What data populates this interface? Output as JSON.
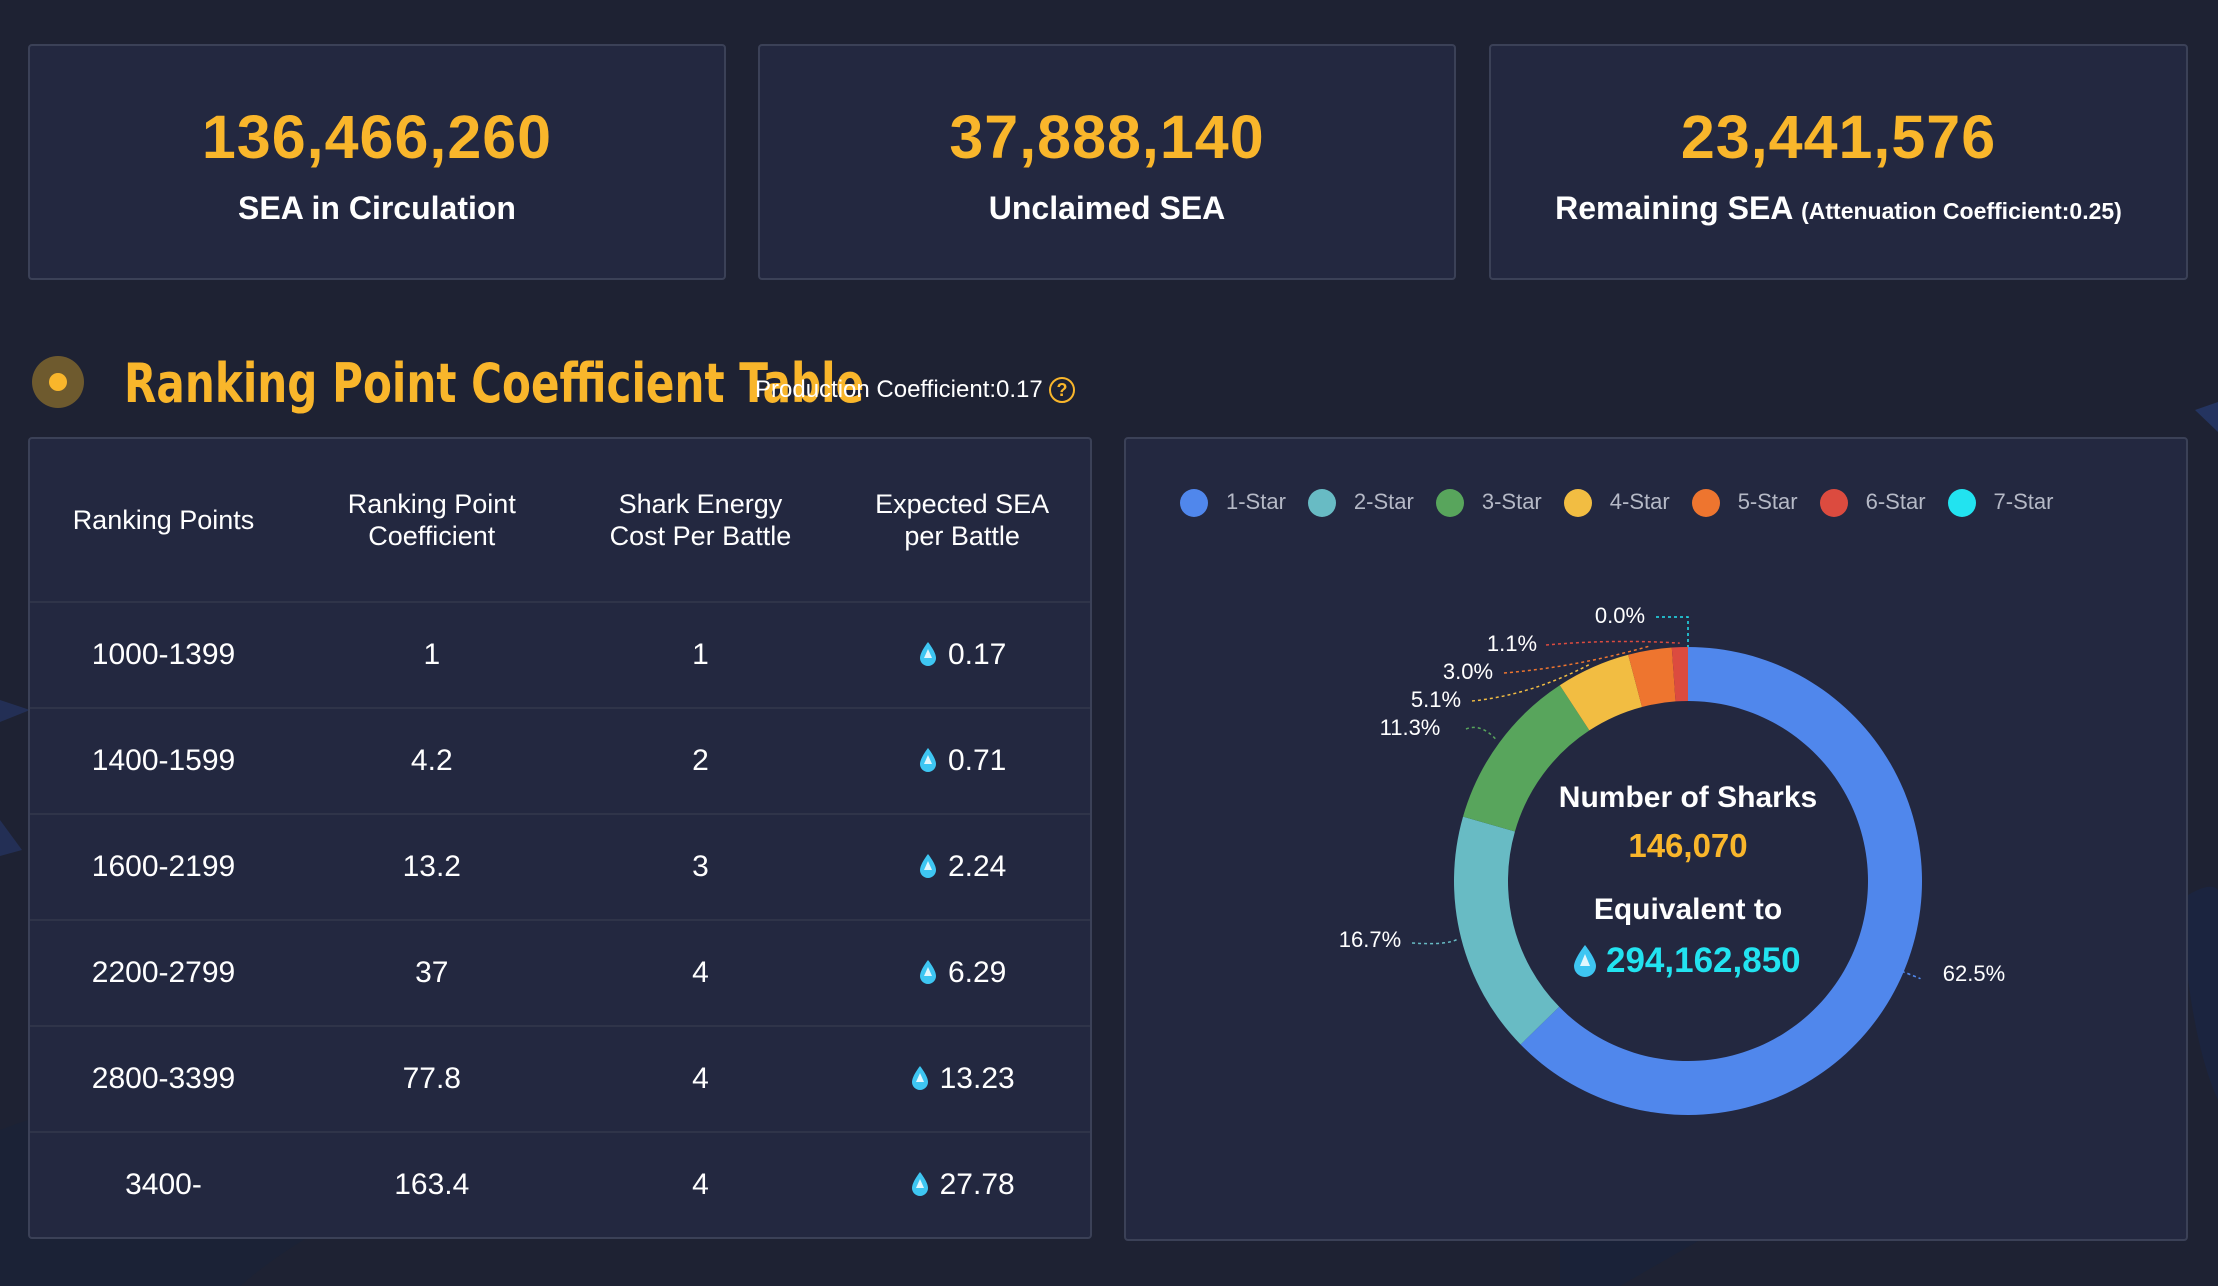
{
  "stats": [
    {
      "value": "136,466,260",
      "label": "SEA in Circulation",
      "sub": ""
    },
    {
      "value": "37,888,140",
      "label": "Unclaimed SEA",
      "sub": ""
    },
    {
      "value": "23,441,576",
      "label": "Remaining SEA",
      "sub": "(Attenuation Coefficient:0.25)"
    }
  ],
  "section": {
    "title": "Ranking Point Coefficient Table",
    "subtitle": "Production Coefficient:0.17",
    "help_icon": "question-circle-icon"
  },
  "table": {
    "headers": [
      "Ranking Points",
      "Ranking Point Coefficient",
      "Shark Energy Cost Per Battle",
      "Expected SEA per Battle"
    ],
    "rows": [
      {
        "points": "1000-1399",
        "coefficient": "1",
        "cost": "1",
        "expected": "0.17"
      },
      {
        "points": "1400-1599",
        "coefficient": "4.2",
        "cost": "2",
        "expected": "0.71"
      },
      {
        "points": "1600-2199",
        "coefficient": "13.2",
        "cost": "3",
        "expected": "2.24"
      },
      {
        "points": "2200-2799",
        "coefficient": "37",
        "cost": "4",
        "expected": "6.29"
      },
      {
        "points": "2800-3399",
        "coefficient": "77.8",
        "cost": "4",
        "expected": "13.23"
      },
      {
        "points": "3400-",
        "coefficient": "163.4",
        "cost": "4",
        "expected": "27.78"
      }
    ],
    "value_icon": "water-drop-icon"
  },
  "colors": {
    "accent": "#f9b62b",
    "cyan": "#22e3f0",
    "panel": "#232840",
    "background": "#1e2233"
  },
  "chart_data": {
    "type": "pie",
    "variant": "donut",
    "legend_position": "top",
    "categories": [
      "1-Star",
      "2-Star",
      "3-Star",
      "4-Star",
      "5-Star",
      "6-Star",
      "7-Star"
    ],
    "values": [
      62.5,
      16.7,
      11.3,
      5.1,
      3.0,
      1.1,
      0.0
    ],
    "labels": [
      "62.5%",
      "16.7%",
      "11.3%",
      "5.1%",
      "3.0%",
      "1.1%",
      "0.0%"
    ],
    "colors": [
      "#5087ec",
      "#68bbc4",
      "#58a55c",
      "#f2bd42",
      "#ee752f",
      "#dc4b3f",
      "#22e3f0"
    ],
    "center": {
      "title": "Number of Sharks",
      "count": "146,070",
      "subtitle": "Equivalent to",
      "equivalent": "294,162,850"
    }
  }
}
